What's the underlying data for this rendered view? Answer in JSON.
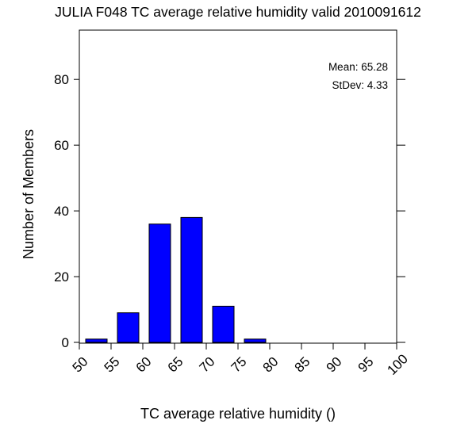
{
  "chart_data": {
    "type": "bar",
    "title": "JULIA F048 TC average relative humidity valid 2010091612",
    "xlabel": "TC average relative humidity ()",
    "ylabel": "Number of Members",
    "bin_edges": [
      50,
      55,
      60,
      65,
      70,
      75,
      80,
      85,
      90,
      95,
      100
    ],
    "values": [
      1,
      9,
      36,
      38,
      11,
      1,
      0,
      0,
      0,
      0
    ],
    "xlim": [
      50,
      100
    ],
    "ylim": [
      0,
      95
    ],
    "yticks": [
      0,
      20,
      40,
      60,
      80
    ],
    "xticks": [
      50,
      55,
      60,
      65,
      70,
      75,
      80,
      85,
      90,
      95,
      100
    ],
    "annotations": [
      "Mean: 65.28",
      "StDev: 4.33"
    ],
    "bar_color": "#0000ff",
    "grid": false
  }
}
